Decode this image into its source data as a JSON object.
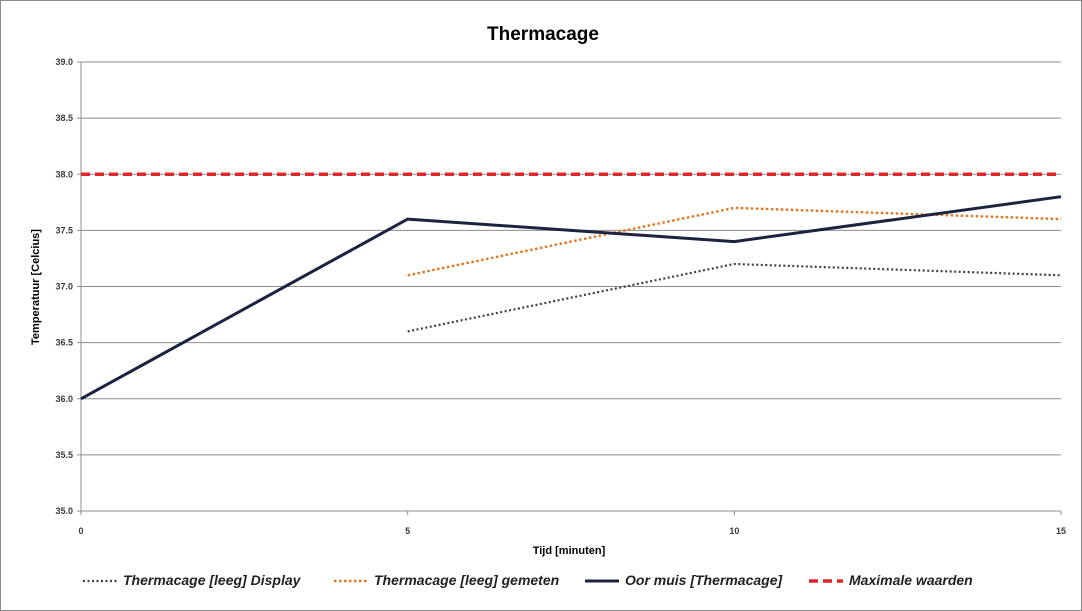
{
  "chart_data": {
    "type": "line",
    "title": "Thermacage",
    "xlabel": "Tijd [minuten]",
    "ylabel": "Temperatuur [Celcius]",
    "x": [
      0,
      5,
      10,
      15
    ],
    "xlim": [
      0,
      15
    ],
    "ylim": [
      35.0,
      39.0
    ],
    "x_ticks": [
      "0",
      "5",
      "10",
      "15"
    ],
    "y_ticks": [
      "35.0",
      "35.5",
      "36.0",
      "36.5",
      "37.0",
      "37.5",
      "38.0",
      "38.5",
      "39.0"
    ],
    "grid": true,
    "legend_position": "bottom",
    "series": [
      {
        "name": "Thermacage [leeg] Display",
        "x": [
          5,
          10,
          15
        ],
        "values": [
          36.6,
          37.2,
          37.1
        ],
        "color": "#404040",
        "style": "dotted"
      },
      {
        "name": "Thermacage [leeg] gemeten",
        "x": [
          5,
          10,
          15
        ],
        "values": [
          37.1,
          37.7,
          37.6
        ],
        "color": "#e0761e",
        "style": "dotted"
      },
      {
        "name": "Oor muis [Thermacage]",
        "x": [
          0,
          5,
          10,
          15
        ],
        "values": [
          36.0,
          37.6,
          37.4,
          37.8
        ],
        "color": "#1b2340",
        "style": "solid"
      },
      {
        "name": "Maximale waarden",
        "x": [
          0,
          5,
          10,
          15
        ],
        "values": [
          38.0,
          38.0,
          38.0,
          38.0
        ],
        "color": "#e0262a",
        "style": "dashed"
      }
    ]
  }
}
